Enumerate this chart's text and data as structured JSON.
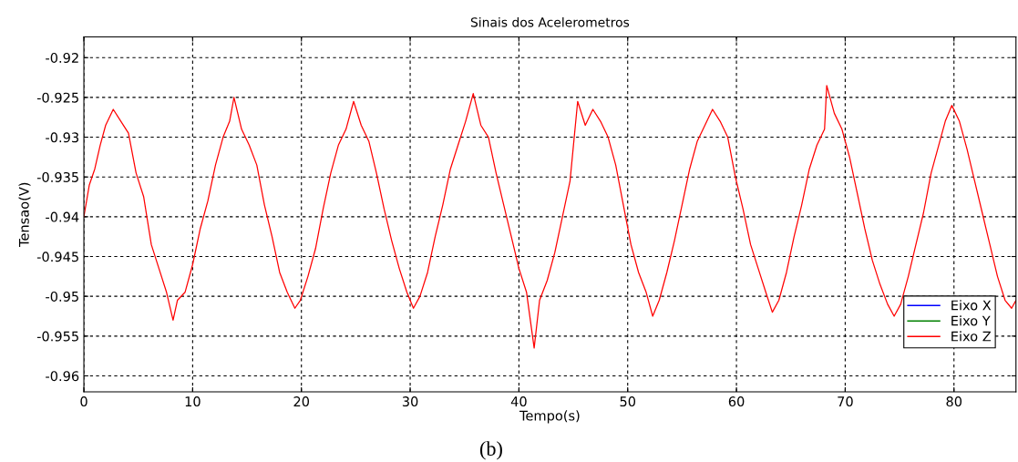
{
  "chart_data": {
    "type": "line",
    "title": "Sinais dos Acelerometros",
    "xlabel": "Tempo(s)",
    "ylabel": "Tensao(V)",
    "annotations": [
      "(b)"
    ],
    "xlim": [
      0,
      85.7
    ],
    "ylim": [
      -0.962,
      -0.9174
    ],
    "xticks": [
      0,
      10,
      20,
      30,
      40,
      50,
      60,
      70,
      80
    ],
    "yticks": [
      -0.92,
      -0.925,
      -0.93,
      -0.935,
      -0.94,
      -0.945,
      -0.95,
      -0.955,
      -0.96
    ],
    "grid": true,
    "legend": "bottom right",
    "line_style": "solid",
    "marker": "none",
    "series": [
      {
        "name": "Eixo X",
        "color": "#0000ff"
      },
      {
        "name": "Eixo Y",
        "color": "#008000"
      },
      {
        "name": "Eixo Z",
        "color": "#ff0000",
        "x": [
          0,
          0.5,
          1.0,
          1.5,
          2.0,
          2.7,
          3.4,
          4.1,
          4.8,
          5.5,
          6.2,
          6.9,
          7.6,
          8.2,
          8.6,
          9.3,
          10.0,
          10.7,
          11.4,
          12.1,
          12.8,
          13.4,
          13.8,
          14.5,
          15.2,
          15.9,
          16.6,
          17.3,
          18.0,
          18.7,
          19.4,
          19.9,
          20.6,
          21.3,
          22.0,
          22.7,
          23.4,
          24.1,
          24.8,
          25.5,
          26.2,
          26.9,
          27.6,
          28.3,
          29.0,
          29.7,
          30.3,
          30.9,
          31.6,
          32.3,
          33.0,
          33.7,
          34.4,
          35.1,
          35.8,
          36.5,
          37.2,
          37.9,
          38.6,
          39.3,
          40.0,
          40.7,
          41.4,
          41.9,
          42.6,
          43.3,
          44.0,
          44.7,
          45.4,
          46.1,
          46.8,
          47.5,
          48.2,
          48.9,
          49.6,
          50.3,
          51.0,
          51.7,
          52.3,
          52.9,
          53.6,
          54.3,
          55.0,
          55.7,
          56.4,
          57.1,
          57.8,
          58.5,
          59.2,
          59.9,
          60.6,
          61.3,
          62.0,
          62.7,
          63.3,
          63.9,
          64.6,
          65.3,
          66.0,
          66.7,
          67.4,
          68.1,
          68.3,
          69.0,
          69.7,
          70.4,
          71.1,
          71.8,
          72.5,
          73.2,
          73.9,
          74.5,
          75.1,
          75.8,
          76.5,
          77.2,
          77.9,
          78.6,
          79.2,
          79.8,
          80.5,
          81.2,
          81.9,
          82.6,
          83.3,
          84.0,
          84.7,
          85.3,
          85.7
        ],
        "values": [
          -0.94,
          -0.936,
          -0.934,
          -0.931,
          -0.9285,
          -0.9265,
          -0.928,
          -0.9295,
          -0.9345,
          -0.9375,
          -0.9435,
          -0.9465,
          -0.9495,
          -0.953,
          -0.9505,
          -0.9495,
          -0.946,
          -0.9415,
          -0.938,
          -0.9335,
          -0.93,
          -0.928,
          -0.925,
          -0.929,
          -0.931,
          -0.9335,
          -0.9385,
          -0.9425,
          -0.947,
          -0.9495,
          -0.9515,
          -0.9505,
          -0.9475,
          -0.944,
          -0.939,
          -0.9345,
          -0.931,
          -0.929,
          -0.9255,
          -0.9285,
          -0.9305,
          -0.9345,
          -0.939,
          -0.943,
          -0.9465,
          -0.9495,
          -0.9515,
          -0.95,
          -0.947,
          -0.9425,
          -0.9385,
          -0.934,
          -0.931,
          -0.928,
          -0.9245,
          -0.9285,
          -0.93,
          -0.9345,
          -0.9385,
          -0.9425,
          -0.9465,
          -0.9495,
          -0.9565,
          -0.9505,
          -0.948,
          -0.9445,
          -0.94,
          -0.9355,
          -0.9255,
          -0.9285,
          -0.9265,
          -0.928,
          -0.93,
          -0.9335,
          -0.9385,
          -0.9435,
          -0.947,
          -0.9495,
          -0.9525,
          -0.9505,
          -0.947,
          -0.943,
          -0.9385,
          -0.934,
          -0.9305,
          -0.9285,
          -0.9265,
          -0.928,
          -0.93,
          -0.935,
          -0.939,
          -0.9435,
          -0.9465,
          -0.9495,
          -0.952,
          -0.9505,
          -0.947,
          -0.9425,
          -0.9385,
          -0.934,
          -0.931,
          -0.929,
          -0.9235,
          -0.927,
          -0.929,
          -0.9325,
          -0.937,
          -0.9415,
          -0.9455,
          -0.9485,
          -0.951,
          -0.9525,
          -0.951,
          -0.9475,
          -0.9435,
          -0.9395,
          -0.9345,
          -0.931,
          -0.928,
          -0.926,
          -0.928,
          -0.9315,
          -0.9355,
          -0.9395,
          -0.9435,
          -0.9475,
          -0.9505,
          -0.9515,
          -0.9505
        ]
      }
    ]
  }
}
